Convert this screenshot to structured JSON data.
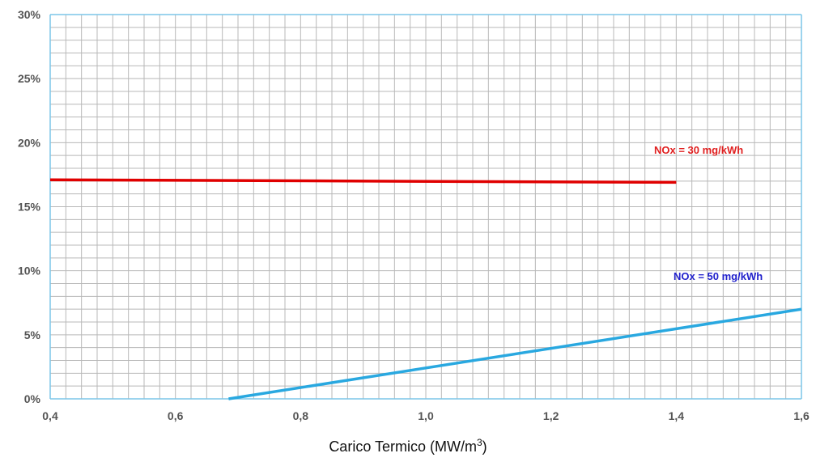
{
  "chart_data": {
    "type": "line",
    "title": "",
    "xlabel": "Carico Termico  (MW/m",
    "xlabel_sup": "3",
    "xlabel_close": ")",
    "ylabel": "",
    "xlim": [
      0.4,
      1.6
    ],
    "ylim": [
      0,
      30
    ],
    "x_ticks": [
      "0,4",
      "0,6",
      "0,8",
      "1,0",
      "1,2",
      "1,4",
      "1,6"
    ],
    "x_tick_values": [
      0.4,
      0.6,
      0.8,
      1.0,
      1.2,
      1.4,
      1.6
    ],
    "y_ticks": [
      "0%",
      "5%",
      "10%",
      "15%",
      "20%",
      "25%",
      "30%"
    ],
    "y_tick_values": [
      0,
      5,
      10,
      15,
      20,
      25,
      30
    ],
    "grid": true,
    "series": [
      {
        "name": "NOx = 30 mg/kWh",
        "color": "#e00000",
        "x": [
          0.4,
          1.4
        ],
        "y": [
          17.1,
          16.9
        ]
      },
      {
        "name": "NOx = 50 mg/kWh",
        "color": "#29a8e0",
        "x": [
          0.685,
          1.6
        ],
        "y": [
          0,
          7.0
        ]
      }
    ],
    "label_colors": [
      "#e02020",
      "#2222cc"
    ]
  }
}
